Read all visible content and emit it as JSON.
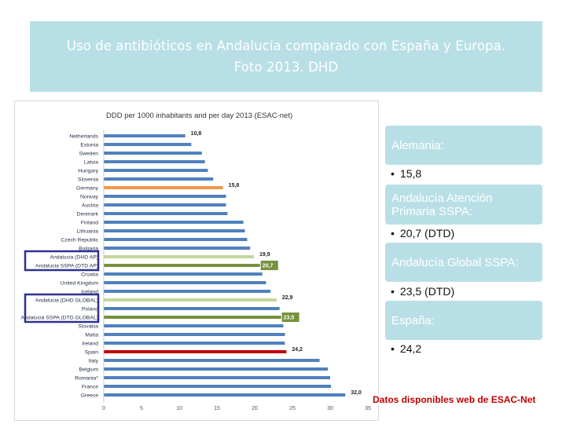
{
  "slide": {
    "title_line1": "Uso de antibióticos en Andalucía comparado con España y Europa.",
    "title_line2": "Foto 2013. DHD",
    "footer_note": "Datos disponibles web de ESAC-Net"
  },
  "cards": [
    {
      "label": "Alemania:",
      "bullet": "15,8"
    },
    {
      "label": "Andalucía Atención Primaria SSPA:",
      "bullet": "20,7 (DTD)"
    },
    {
      "label": "Andalucía Global SSPA:",
      "bullet": "23,5 (DTD)"
    },
    {
      "label": "España:",
      "bullet": "24,2"
    }
  ],
  "colors": {
    "title_box": "#b9dfe6",
    "bar_default": "#4f81bd",
    "bar_germany": "#f79646",
    "bar_andalucia_dhd": "#c3d69b",
    "bar_andalucia_sspa": "#76923c",
    "bar_spain": "#c00000",
    "highlight_box": "#2e3192",
    "footer_text": "#c00000"
  },
  "chart_data": {
    "type": "bar",
    "orientation": "horizontal",
    "title": "DDD per 1000 inhabitants and per day 2013 (ESAC-net)",
    "xlim": [
      0,
      35
    ],
    "xticks": [
      0,
      5,
      10,
      15,
      20,
      25,
      30,
      35
    ],
    "categories": [
      "Netherlands",
      "Estonia",
      "Sweden",
      "Latvia",
      "Hungary",
      "Slovenia",
      "Germany",
      "Norway",
      "Austria",
      "Denmark",
      "Finland",
      "Lithuania",
      "Czech Republic",
      "Bulgaria",
      "Andalucia (DHD AP)",
      "Andalucia SSPA (DTD AP)",
      "Croatia",
      "United Kingdom",
      "Iceland",
      "Andalucia (DHD GLOBAL)",
      "Poland",
      "Andalucia SSPA (DTD GLOBAL)",
      "Slovakia",
      "Malta",
      "Ireland",
      "Spain",
      "Italy",
      "Belgium",
      "Romania*",
      "France",
      "Greece"
    ],
    "values": [
      10.8,
      11.6,
      13.0,
      13.4,
      13.8,
      14.5,
      15.8,
      16.2,
      16.2,
      16.4,
      18.5,
      18.7,
      19.0,
      19.4,
      19.9,
      20.7,
      21.0,
      21.5,
      22.1,
      22.9,
      23.3,
      23.5,
      23.8,
      24.0,
      24.0,
      24.2,
      28.6,
      29.7,
      30.0,
      30.1,
      32.0
    ],
    "value_labels": {
      "0": "10,8",
      "6": "15,8",
      "14": "19,9",
      "15": "20,7",
      "19": "22,9",
      "21": "23,5",
      "25": "24,2",
      "30": "32,0"
    },
    "highlight_colors": {
      "6": "bar_germany",
      "14": "bar_andalucia_dhd",
      "15": "bar_andalucia_sspa",
      "19": "bar_andalucia_dhd",
      "21": "bar_andalucia_sspa",
      "25": "bar_spain"
    },
    "highlight_boxes": [
      [
        14,
        15
      ],
      [
        19,
        21
      ]
    ]
  }
}
